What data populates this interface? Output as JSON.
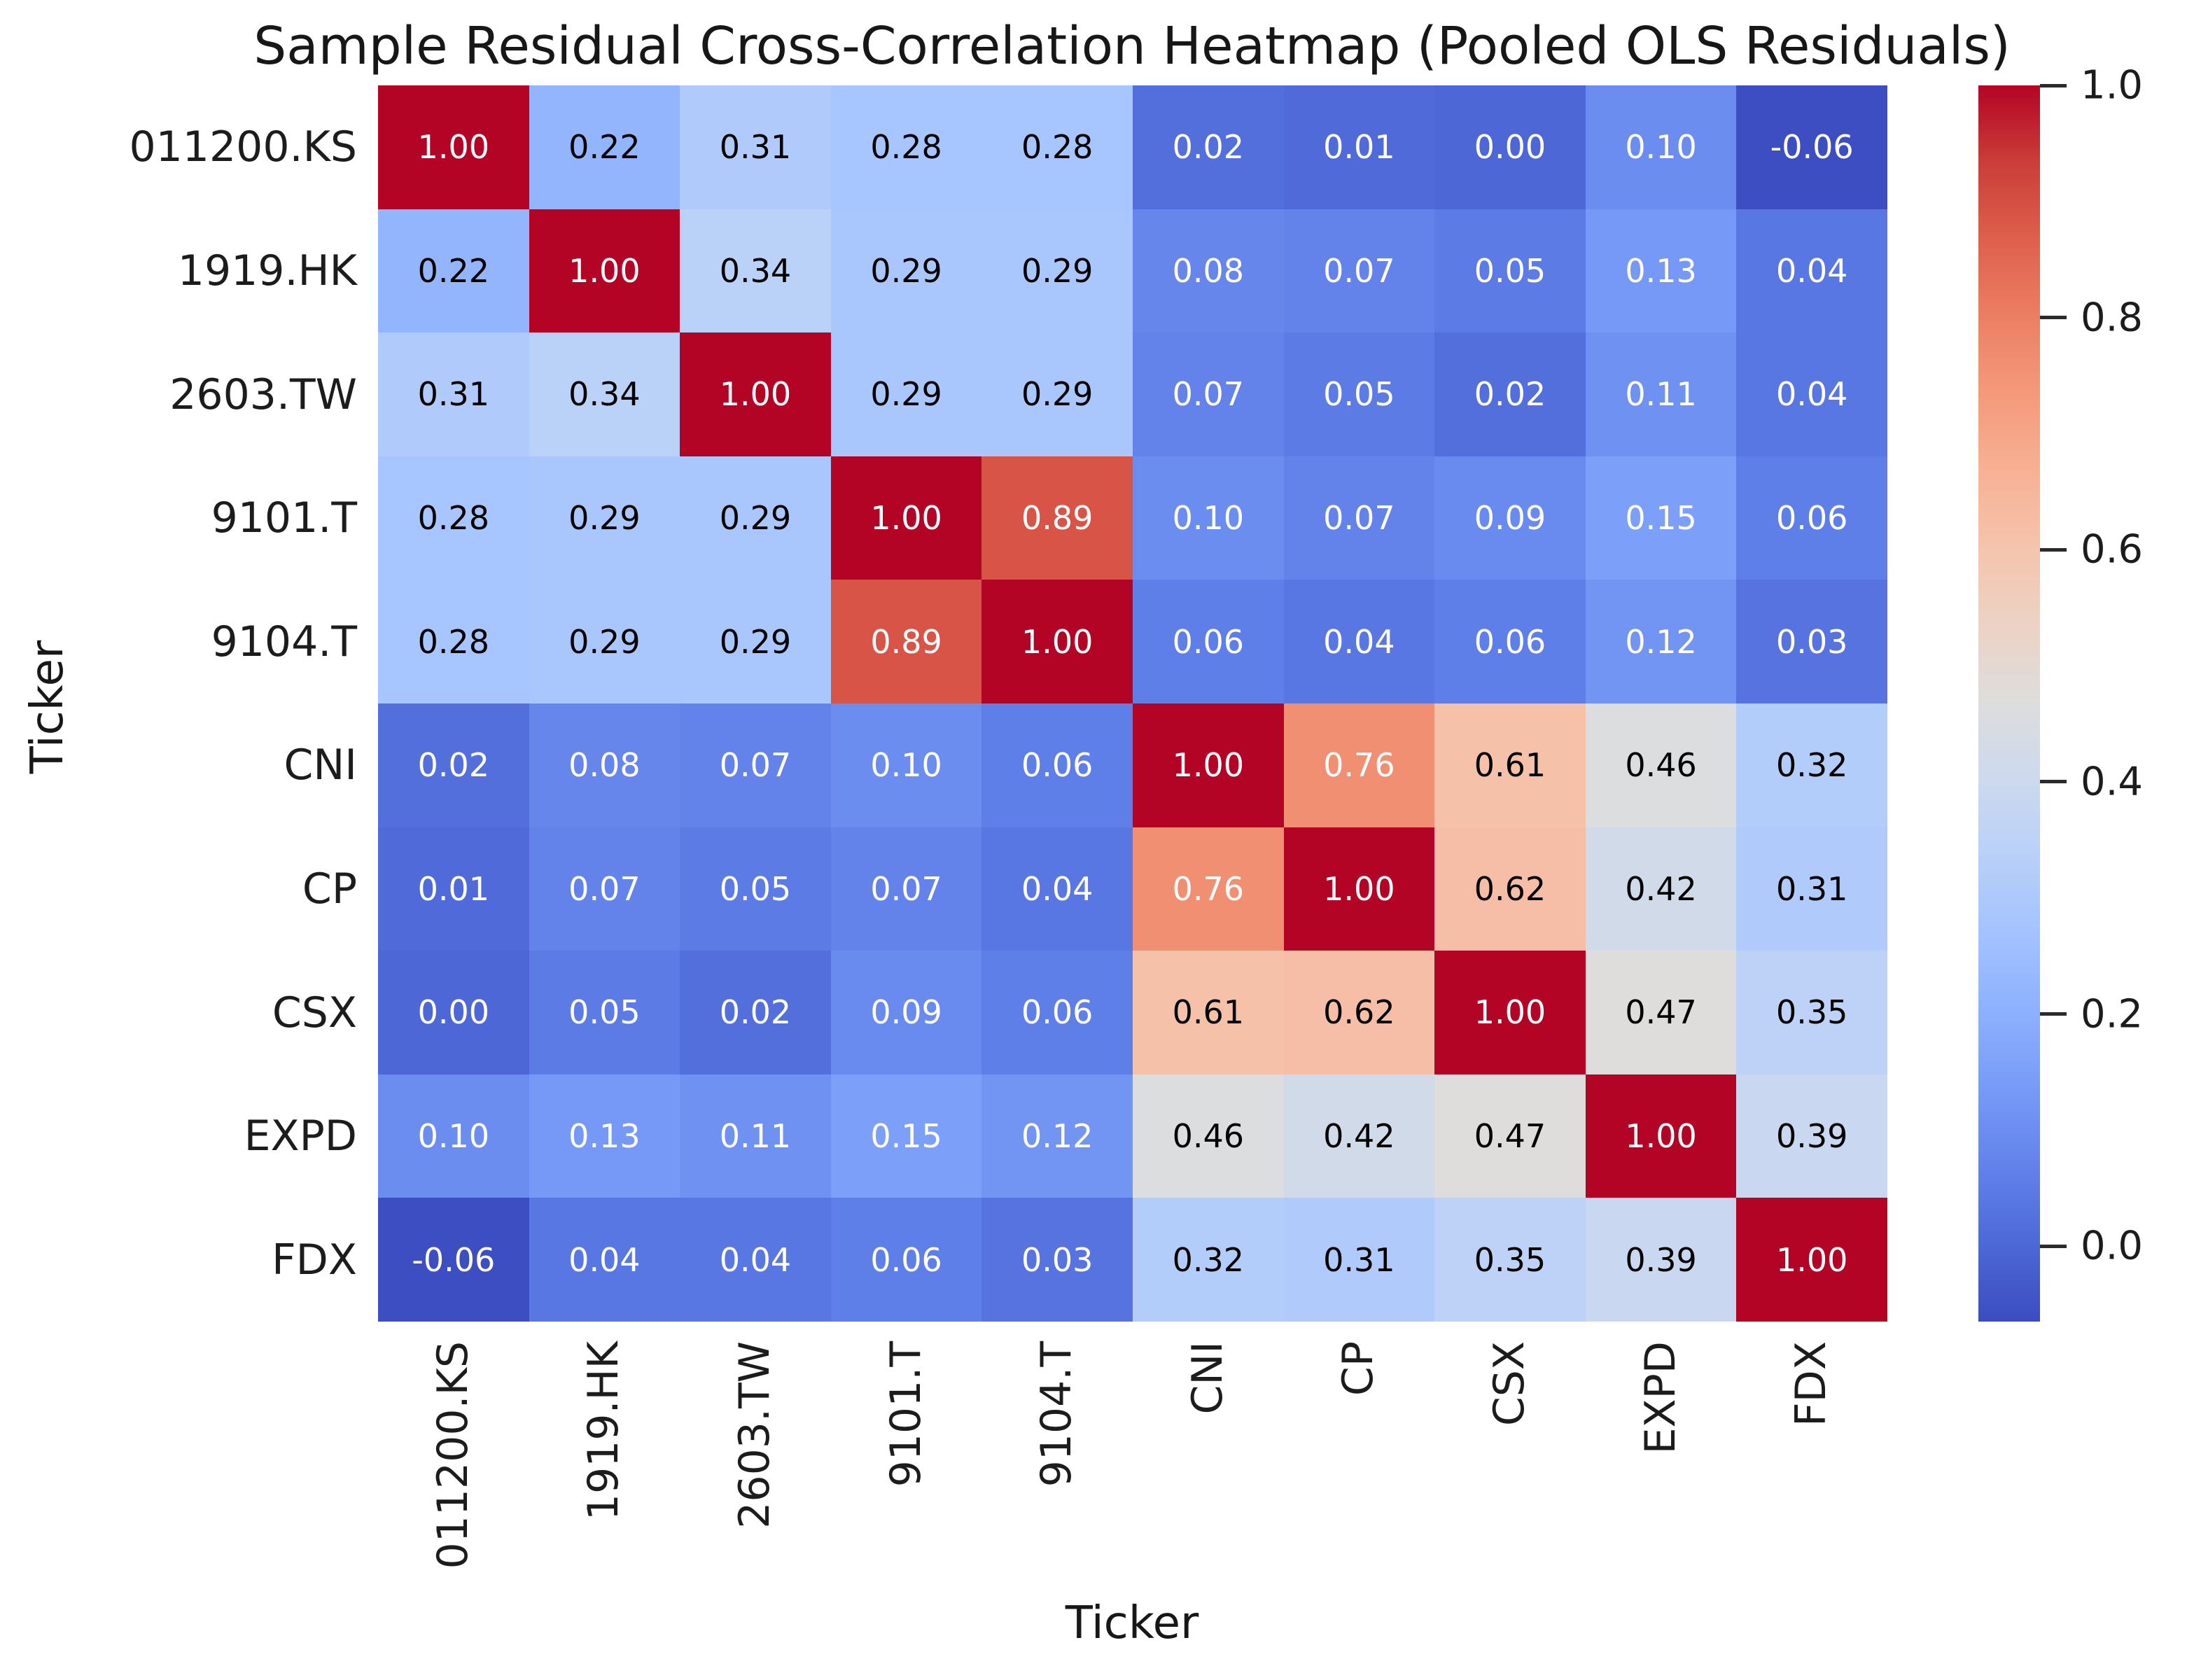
{
  "title": "Sample Residual Cross-Correlation Heatmap (Pooled OLS Residuals)",
  "chart_data": {
    "type": "heatmap",
    "title": "Sample Residual Cross-Correlation Heatmap (Pooled OLS Residuals)",
    "xlabel": "Ticker",
    "ylabel": "Ticker",
    "tickers": [
      "011200.KS",
      "1919.HK",
      "2603.TW",
      "9101.T",
      "9104.T",
      "CNI",
      "CP",
      "CSX",
      "EXPD",
      "FDX"
    ],
    "matrix": [
      [
        1.0,
        0.22,
        0.31,
        0.28,
        0.28,
        0.02,
        0.01,
        0.0,
        0.1,
        -0.06
      ],
      [
        0.22,
        1.0,
        0.34,
        0.29,
        0.29,
        0.08,
        0.07,
        0.05,
        0.13,
        0.04
      ],
      [
        0.31,
        0.34,
        1.0,
        0.29,
        0.29,
        0.07,
        0.05,
        0.02,
        0.11,
        0.04
      ],
      [
        0.28,
        0.29,
        0.29,
        1.0,
        0.89,
        0.1,
        0.07,
        0.09,
        0.15,
        0.06
      ],
      [
        0.28,
        0.29,
        0.29,
        0.89,
        1.0,
        0.06,
        0.04,
        0.06,
        0.12,
        0.03
      ],
      [
        0.02,
        0.08,
        0.07,
        0.1,
        0.06,
        1.0,
        0.76,
        0.61,
        0.46,
        0.32
      ],
      [
        0.01,
        0.07,
        0.05,
        0.07,
        0.04,
        0.76,
        1.0,
        0.62,
        0.42,
        0.31
      ],
      [
        0.0,
        0.05,
        0.02,
        0.09,
        0.06,
        0.61,
        0.62,
        1.0,
        0.47,
        0.35
      ],
      [
        0.1,
        0.13,
        0.11,
        0.15,
        0.12,
        0.46,
        0.42,
        0.47,
        1.0,
        0.39
      ],
      [
        -0.06,
        0.04,
        0.04,
        0.06,
        0.03,
        0.32,
        0.31,
        0.35,
        0.39,
        1.0
      ]
    ],
    "value_decimals": 2,
    "grid": false,
    "legend_position": "right-colorbar",
    "colorbar": {
      "ticks": [
        1.0,
        0.8,
        0.6,
        0.4,
        0.2,
        0.0
      ],
      "tick_labels": [
        "1.0",
        "0.8",
        "0.6",
        "0.4",
        "0.2",
        "0.0"
      ],
      "clim": [
        -0.065,
        1.0
      ]
    },
    "colormap": "coolwarm",
    "colormap_anchors": [
      [
        0.0,
        59,
        76,
        192
      ],
      [
        0.0625,
        77,
        104,
        215
      ],
      [
        0.125,
        98,
        130,
        234
      ],
      [
        0.1875,
        119,
        154,
        247
      ],
      [
        0.25,
        141,
        176,
        254
      ],
      [
        0.3125,
        163,
        194,
        255
      ],
      [
        0.375,
        184,
        208,
        249
      ],
      [
        0.4375,
        204,
        217,
        238
      ],
      [
        0.5,
        221,
        221,
        221
      ],
      [
        0.5625,
        236,
        211,
        197
      ],
      [
        0.625,
        245,
        196,
        173
      ],
      [
        0.6875,
        247,
        177,
        148
      ],
      [
        0.75,
        244,
        154,
        123
      ],
      [
        0.8125,
        236,
        127,
        99
      ],
      [
        0.875,
        222,
        96,
        77
      ],
      [
        0.9375,
        203,
        62,
        56
      ],
      [
        1.0,
        180,
        4,
        38
      ]
    ],
    "annotation_text_colors": {
      "light_cells": "#000000",
      "dark_cells": "#ffffff"
    },
    "axis_text_color": "#1c1c1c"
  }
}
